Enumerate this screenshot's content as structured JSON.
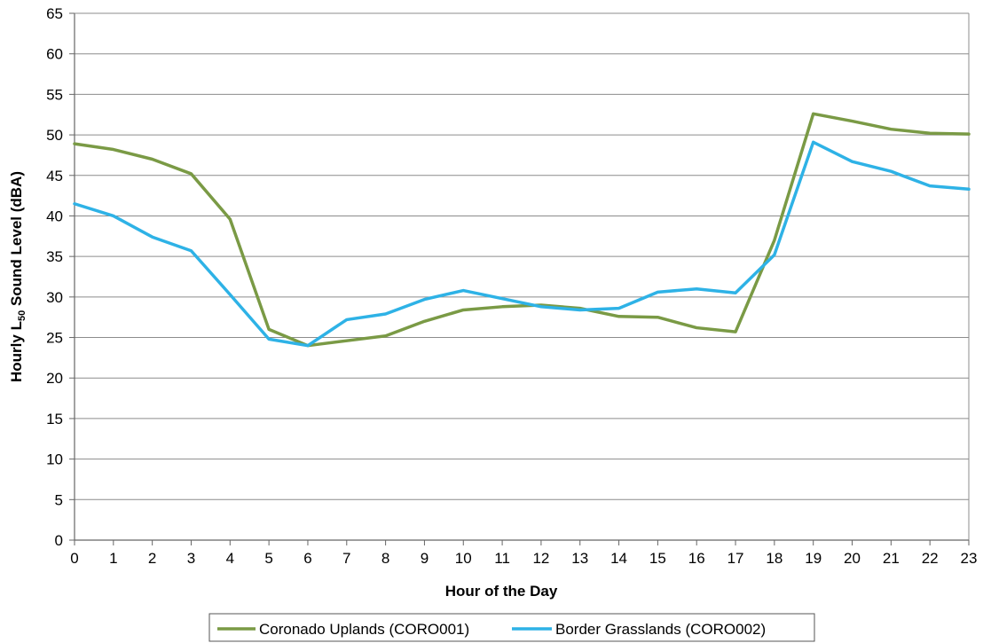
{
  "chart_data": {
    "type": "line",
    "title": "",
    "xlabel": "Hour of the Day",
    "ylabel": {
      "prefix": "Hourly L",
      "subscript": "50",
      "suffix": " Sound Level (dBA)"
    },
    "x": [
      0,
      1,
      2,
      3,
      4,
      5,
      6,
      7,
      8,
      9,
      10,
      11,
      12,
      13,
      14,
      15,
      16,
      17,
      18,
      19,
      20,
      21,
      22,
      23
    ],
    "xlim": [
      0,
      23
    ],
    "ylim": [
      0,
      65
    ],
    "yticks": [
      0,
      5,
      10,
      15,
      20,
      25,
      30,
      35,
      40,
      45,
      50,
      55,
      60,
      65
    ],
    "grid": true,
    "legend_position": "bottom",
    "series": [
      {
        "name": "Coronado Uplands (CORO001)",
        "color": "#7a9a45",
        "values": [
          48.9,
          48.2,
          47.0,
          45.2,
          39.6,
          26.0,
          24.0,
          24.6,
          25.2,
          27.0,
          28.4,
          28.8,
          29.0,
          28.6,
          27.6,
          27.5,
          26.2,
          25.7,
          37.0,
          52.6,
          51.7,
          50.7,
          50.2,
          50.1
        ]
      },
      {
        "name": "Border Grasslands (CORO002)",
        "color": "#2eb2e6",
        "values": [
          41.5,
          40.0,
          37.4,
          35.7,
          30.3,
          24.8,
          24.0,
          27.2,
          27.9,
          29.7,
          30.8,
          29.8,
          28.8,
          28.4,
          28.6,
          30.6,
          31.0,
          30.5,
          35.2,
          49.1,
          46.7,
          45.5,
          43.7,
          43.3
        ]
      }
    ]
  }
}
